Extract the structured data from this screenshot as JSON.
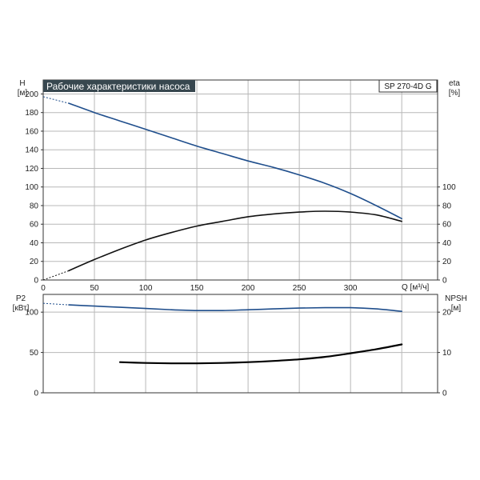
{
  "chart_data": [
    {
      "type": "line",
      "title": "Рабочие характеристики насоса",
      "model_label": "SP 270-4D G",
      "left_axis_label": [
        "H",
        "[м]"
      ],
      "right_axis_label": [
        "eta",
        "[%]"
      ],
      "x_axis_label": "Q [м³/ч]",
      "xlim": [
        0,
        385
      ],
      "ylim_left": [
        0,
        215
      ],
      "ylim_right": [
        0,
        215
      ],
      "x_ticks": [
        "0",
        "50",
        "100",
        "150",
        "200",
        "250",
        "300"
      ],
      "y_ticks_left": [
        "0",
        "20",
        "40",
        "60",
        "80",
        "100",
        "120",
        "140",
        "160",
        "180",
        "200"
      ],
      "y_ticks_right": [
        "0",
        "20",
        "40",
        "60",
        "80",
        "100"
      ],
      "x_tick_values": [
        0,
        50,
        100,
        150,
        200,
        250,
        300
      ],
      "y_tick_values_left": [
        0,
        20,
        40,
        60,
        80,
        100,
        120,
        140,
        160,
        180,
        200
      ],
      "y_tick_values_right": [
        0,
        20,
        40,
        60,
        80,
        100
      ],
      "series": [
        {
          "axis": "left",
          "color": "#1f4e8c",
          "dashed_extension": {
            "x": [
              0,
              25
            ],
            "y": [
              197,
              190
            ]
          },
          "x": [
            25,
            50,
            75,
            100,
            125,
            150,
            175,
            200,
            225,
            250,
            275,
            300,
            325,
            350
          ],
          "y": [
            190,
            180,
            171,
            162,
            153,
            144,
            136,
            128,
            121,
            113,
            104,
            93,
            80,
            66
          ]
        },
        {
          "axis": "right",
          "color": "#111111",
          "dashed_extension": {
            "x": [
              0,
              25
            ],
            "y": [
              0,
              10
            ]
          },
          "x": [
            25,
            50,
            75,
            100,
            125,
            150,
            175,
            200,
            225,
            250,
            275,
            300,
            325,
            350
          ],
          "y": [
            10,
            22,
            33,
            43,
            51,
            58,
            63,
            68,
            71,
            73,
            74,
            73,
            70,
            63
          ]
        }
      ]
    },
    {
      "type": "line",
      "left_axis_label": [
        "P2",
        "[кВт]"
      ],
      "right_axis_label": [
        "NPSH",
        "[м]"
      ],
      "xlim": [
        0,
        385
      ],
      "ylim_left": [
        0,
        122
      ],
      "ylim_right": [
        0,
        24.4
      ],
      "y_ticks_left": [
        "0",
        "50",
        "100"
      ],
      "y_ticks_right": [
        "0",
        "10",
        "20"
      ],
      "y_tick_values_left": [
        0,
        50,
        100
      ],
      "y_tick_values_right": [
        0,
        10,
        20
      ],
      "series": [
        {
          "axis": "left",
          "color": "#1f4e8c",
          "dashed_extension": {
            "x": [
              0,
              25
            ],
            "y": [
              111,
              109
            ]
          },
          "x": [
            25,
            50,
            75,
            100,
            125,
            150,
            175,
            200,
            225,
            250,
            275,
            300,
            325,
            350
          ],
          "y": [
            109,
            107.5,
            106,
            104.5,
            103,
            102,
            102,
            103,
            104,
            105,
            105.5,
            105.5,
            104,
            101
          ]
        },
        {
          "axis": "right",
          "color": "#000000",
          "x": [
            75,
            100,
            125,
            150,
            175,
            200,
            225,
            250,
            275,
            300,
            325,
            350
          ],
          "y": [
            7.6,
            7.4,
            7.3,
            7.3,
            7.4,
            7.6,
            7.9,
            8.3,
            8.9,
            9.8,
            10.8,
            12.0
          ]
        }
      ]
    }
  ]
}
